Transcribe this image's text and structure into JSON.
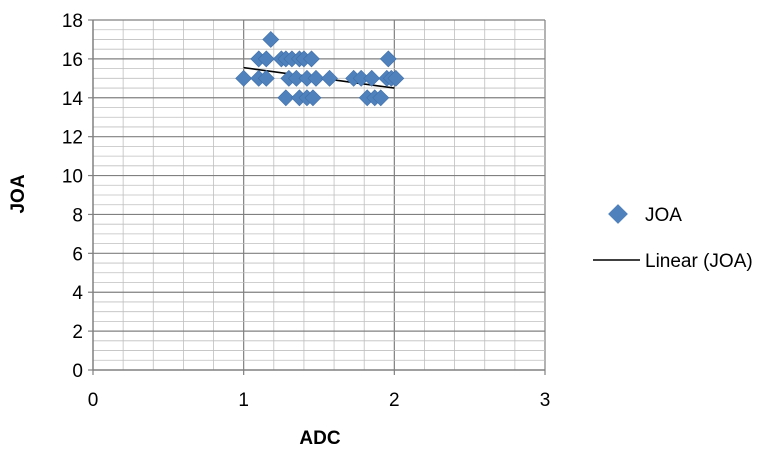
{
  "chart_data": {
    "type": "scatter",
    "title": "",
    "xlabel": "ADC",
    "ylabel": "JOA",
    "xlim": [
      0,
      3
    ],
    "ylim": [
      0,
      18
    ],
    "x_ticks": [
      "0",
      "1",
      "2",
      "3"
    ],
    "y_ticks": [
      "0",
      "2",
      "4",
      "6",
      "8",
      "10",
      "12",
      "14",
      "16",
      "18"
    ],
    "x_minor_step": 0.2,
    "y_minor_step": 0.5,
    "grid": "major and minor",
    "legend_position": "right",
    "colors": {
      "marker": "#4F81BD",
      "trendline": "#000000",
      "major_grid": "#808080",
      "minor_grid": "#BFBFBF"
    },
    "series": [
      {
        "name": "JOA",
        "marker": "diamond",
        "points": [
          {
            "x": 1.0,
            "y": 15
          },
          {
            "x": 1.1,
            "y": 15
          },
          {
            "x": 1.1,
            "y": 16
          },
          {
            "x": 1.15,
            "y": 16
          },
          {
            "x": 1.15,
            "y": 15
          },
          {
            "x": 1.18,
            "y": 17
          },
          {
            "x": 1.25,
            "y": 16
          },
          {
            "x": 1.28,
            "y": 16
          },
          {
            "x": 1.28,
            "y": 14
          },
          {
            "x": 1.3,
            "y": 15
          },
          {
            "x": 1.32,
            "y": 16
          },
          {
            "x": 1.35,
            "y": 15
          },
          {
            "x": 1.37,
            "y": 16
          },
          {
            "x": 1.37,
            "y": 14
          },
          {
            "x": 1.4,
            "y": 16
          },
          {
            "x": 1.42,
            "y": 15
          },
          {
            "x": 1.42,
            "y": 14
          },
          {
            "x": 1.45,
            "y": 16
          },
          {
            "x": 1.46,
            "y": 14
          },
          {
            "x": 1.48,
            "y": 15
          },
          {
            "x": 1.57,
            "y": 15
          },
          {
            "x": 1.73,
            "y": 15
          },
          {
            "x": 1.78,
            "y": 15
          },
          {
            "x": 1.82,
            "y": 14
          },
          {
            "x": 1.85,
            "y": 15
          },
          {
            "x": 1.87,
            "y": 14
          },
          {
            "x": 1.91,
            "y": 14
          },
          {
            "x": 1.95,
            "y": 15
          },
          {
            "x": 1.96,
            "y": 16
          },
          {
            "x": 1.98,
            "y": 15
          },
          {
            "x": 2.01,
            "y": 15
          }
        ]
      },
      {
        "name": "Linear (JOA)",
        "type": "line",
        "points": [
          {
            "x": 1.0,
            "y": 15.55
          },
          {
            "x": 2.0,
            "y": 14.5
          }
        ]
      }
    ]
  }
}
